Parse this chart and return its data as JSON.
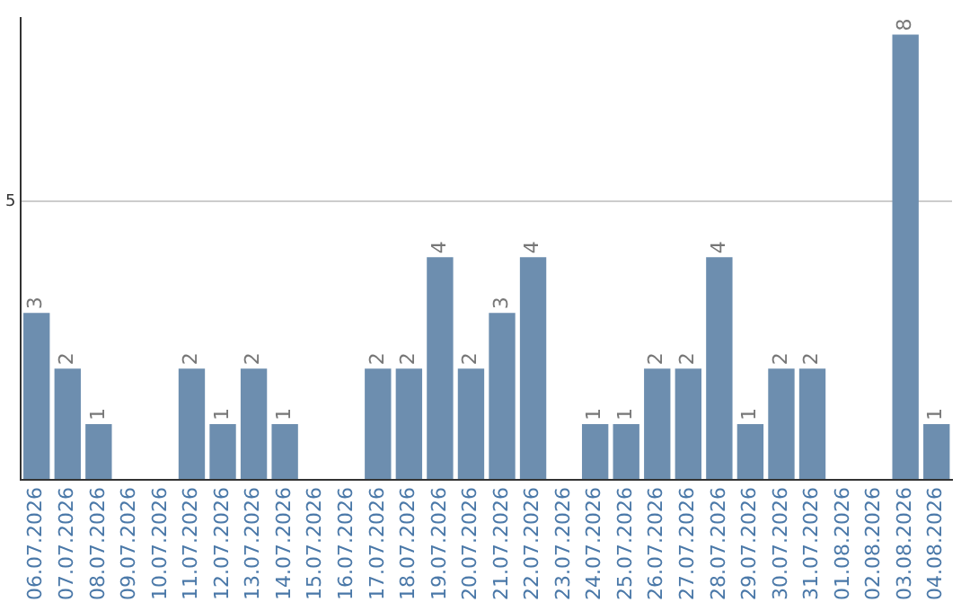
{
  "chart_data": {
    "type": "bar",
    "categories": [
      "06.07.2026",
      "07.07.2026",
      "08.07.2026",
      "09.07.2026",
      "10.07.2026",
      "11.07.2026",
      "12.07.2026",
      "13.07.2026",
      "14.07.2026",
      "15.07.2026",
      "16.07.2026",
      "17.07.2026",
      "18.07.2026",
      "19.07.2026",
      "20.07.2026",
      "21.07.2026",
      "22.07.2026",
      "23.07.2026",
      "24.07.2026",
      "25.07.2026",
      "26.07.2026",
      "27.07.2026",
      "28.07.2026",
      "29.07.2026",
      "30.07.2026",
      "31.07.2026",
      "01.08.2026",
      "02.08.2026",
      "03.08.2026",
      "04.08.2026"
    ],
    "values": [
      3,
      2,
      1,
      null,
      null,
      2,
      1,
      2,
      1,
      null,
      null,
      2,
      2,
      4,
      2,
      3,
      4,
      null,
      1,
      1,
      2,
      2,
      4,
      1,
      2,
      2,
      null,
      null,
      8,
      1
    ],
    "color": "#6d8eaf",
    "ylim": [
      0,
      8.3
    ],
    "yticks": [
      {
        "value": 0,
        "label": null
      },
      5
    ],
    "grid": "y",
    "data_labels": true,
    "legend": false
  }
}
